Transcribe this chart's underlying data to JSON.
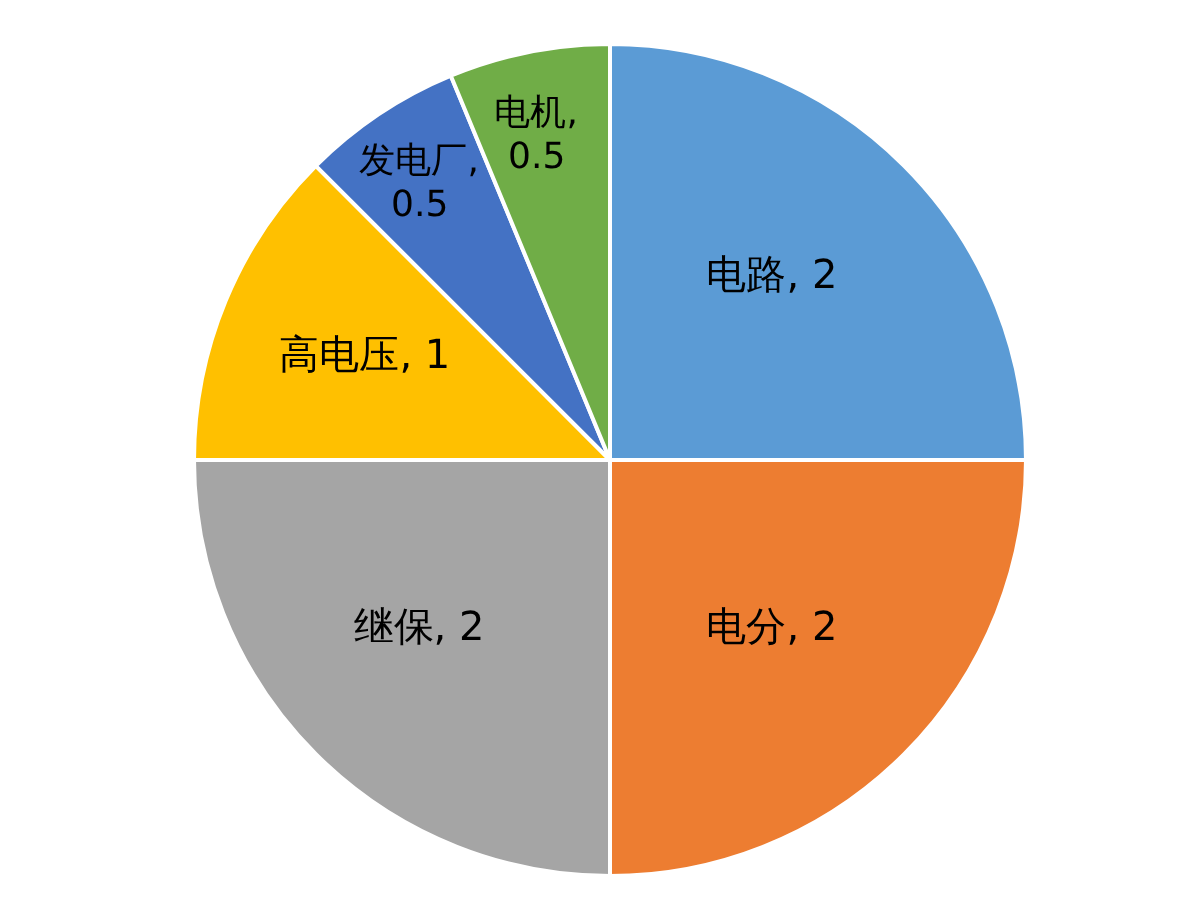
{
  "chart_data": {
    "type": "pie",
    "categories": [
      "电路",
      "电分",
      "继保",
      "高电压",
      "发电厂",
      "电机"
    ],
    "values": [
      2,
      2,
      2,
      1,
      0.5,
      0.5
    ],
    "colors": [
      "#5b9bd5",
      "#ed7d31",
      "#a5a5a5",
      "#ffc000",
      "#4472c4",
      "#70ad47"
    ],
    "value_labels": [
      ", 2",
      ", 2",
      ", 2",
      ", 1",
      ", 0.5",
      ", 0.5"
    ],
    "legend": false
  }
}
